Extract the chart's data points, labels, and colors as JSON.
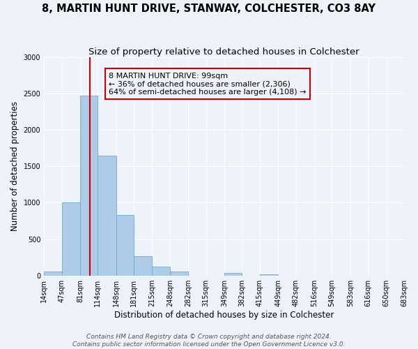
{
  "title": "8, MARTIN HUNT DRIVE, STANWAY, COLCHESTER, CO3 8AY",
  "subtitle": "Size of property relative to detached houses in Colchester",
  "xlabel": "Distribution of detached houses by size in Colchester",
  "ylabel": "Number of detached properties",
  "bar_edges": [
    14,
    47,
    81,
    114,
    148,
    181,
    215,
    248,
    282,
    315,
    349,
    382,
    415,
    449,
    482,
    516,
    549,
    583,
    616,
    650,
    683
  ],
  "bar_heights": [
    50,
    1000,
    2470,
    1650,
    830,
    270,
    120,
    50,
    0,
    0,
    35,
    0,
    18,
    0,
    0,
    0,
    0,
    0,
    0,
    0
  ],
  "bar_color": "#aecce8",
  "bar_edgecolor": "#6aadd5",
  "vline_x": 99,
  "vline_color": "#cc0000",
  "annotation_text": "8 MARTIN HUNT DRIVE: 99sqm\n← 36% of detached houses are smaller (2,306)\n64% of semi-detached houses are larger (4,108) →",
  "annotation_box_edgecolor": "#cc0000",
  "ylim": [
    0,
    3000
  ],
  "yticks": [
    0,
    500,
    1000,
    1500,
    2000,
    2500,
    3000
  ],
  "footer_line1": "Contains HM Land Registry data © Crown copyright and database right 2024.",
  "footer_line2": "Contains public sector information licensed under the Open Government Licence v3.0.",
  "bg_color": "#eef2f9",
  "grid_color": "#ffffff",
  "title_fontsize": 10.5,
  "subtitle_fontsize": 9.5,
  "axis_label_fontsize": 8.5,
  "tick_fontsize": 7,
  "annotation_fontsize": 8,
  "footer_fontsize": 6.5
}
